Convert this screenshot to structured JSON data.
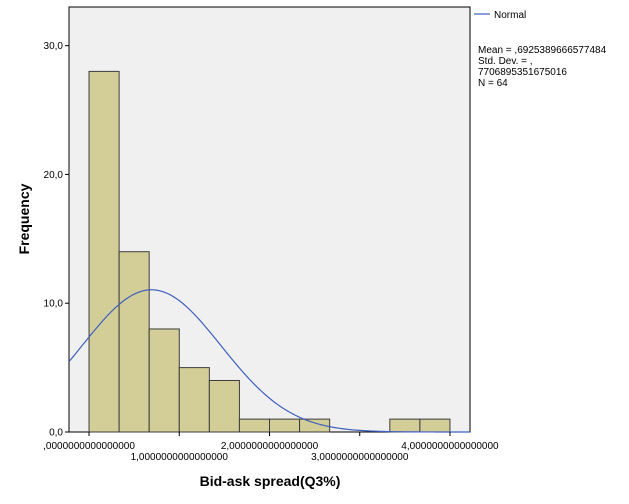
{
  "chart_data": {
    "type": "histogram",
    "xlabel": "Bid-ask spread(Q3%)",
    "ylabel": "Frequency",
    "bins": [
      {
        "start": 0.0,
        "end": 0.333333,
        "count": 28
      },
      {
        "start": 0.333333,
        "end": 0.666667,
        "count": 14
      },
      {
        "start": 0.666667,
        "end": 1.0,
        "count": 8
      },
      {
        "start": 1.0,
        "end": 1.333333,
        "count": 5
      },
      {
        "start": 1.333333,
        "end": 1.666667,
        "count": 4
      },
      {
        "start": 1.666667,
        "end": 2.0,
        "count": 1
      },
      {
        "start": 2.0,
        "end": 2.333333,
        "count": 1
      },
      {
        "start": 2.333333,
        "end": 2.666667,
        "count": 1
      },
      {
        "start": 3.333333,
        "end": 3.666667,
        "count": 1
      },
      {
        "start": 3.666667,
        "end": 4.0,
        "count": 1
      }
    ],
    "xlim": [
      -0.222,
      4.222
    ],
    "ylim": [
      0,
      33.0
    ],
    "x_ticks": [
      {
        "value": 0,
        "label": ",0000000000000000"
      },
      {
        "value": 1,
        "label": "1,0000000000000000"
      },
      {
        "value": 2,
        "label": "2,0000000000000000"
      },
      {
        "value": 3,
        "label": "3,0000000000000000"
      },
      {
        "value": 4,
        "label": "4,0000000000000000"
      }
    ],
    "y_ticks": [
      {
        "value": 0,
        "label": "0,0"
      },
      {
        "value": 10,
        "label": "10,0"
      },
      {
        "value": 20,
        "label": "20,0"
      },
      {
        "value": 30,
        "label": "30,0"
      }
    ],
    "normal_curve": {
      "name": "Normal",
      "mean": 0.6925389666577484,
      "sd": 0.7706895351675016,
      "n": 64
    },
    "legend": {
      "position": "top-right",
      "series_label": "Normal",
      "stats_lines": [
        "Mean = ,6925389666577484",
        "Std. Dev. = ,",
        "7706895351675016",
        "N = 64"
      ]
    },
    "grid": false,
    "colors": {
      "plot_background": "#f0f0f0",
      "bar_fill": "#d3ce97",
      "bar_stroke": "#3c3c3c",
      "curve": "#3f5fbf"
    }
  }
}
